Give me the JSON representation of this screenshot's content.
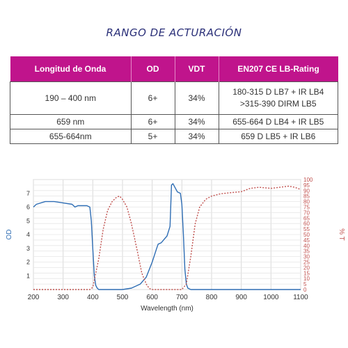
{
  "title": "RANGO DE ACTURACIÓN",
  "table": {
    "headers": [
      "Longitud de Onda",
      "OD",
      "VDT",
      "EN207 CE LB-Rating"
    ],
    "rows": [
      {
        "wavelength": "190 – 400 nm",
        "od": "6+",
        "vdt": "34%",
        "rating": [
          "180-315 D LB7 + IR LB4",
          ">315-390 DIRM LB5"
        ]
      },
      {
        "wavelength": "659 nm",
        "od": "6+",
        "vdt": "34%",
        "rating": [
          "655-664 D LB4 + IR LB5"
        ]
      },
      {
        "wavelength": "655-664nm",
        "od": "5+",
        "vdt": "34%",
        "rating": [
          "659 D LB5 + IR LB6"
        ]
      }
    ]
  },
  "chart_data": {
    "type": "line",
    "xlabel": "Wavelength (nm)",
    "ylabel_left": "OD",
    "ylabel_right": "% T",
    "xlim": [
      200,
      1100
    ],
    "ylim_left": [
      0,
      8
    ],
    "ylim_right": [
      0,
      100
    ],
    "xticks": [
      200,
      300,
      400,
      500,
      600,
      700,
      800,
      900,
      1000,
      1100
    ],
    "yticks_left": [
      1,
      2,
      3,
      4,
      5,
      6,
      7
    ],
    "yticks_right": [
      0,
      5,
      10,
      15,
      20,
      25,
      30,
      35,
      40,
      45,
      50,
      55,
      60,
      65,
      70,
      75,
      80,
      85,
      90,
      95,
      100
    ],
    "grid": true,
    "series": [
      {
        "axis": "left",
        "color": "#2e6db4",
        "dash": "solid",
        "x": [
          200,
          210,
          240,
          270,
          300,
          330,
          340,
          350,
          380,
          390,
          395,
          400,
          405,
          410,
          415,
          420,
          440,
          470,
          500,
          530,
          560,
          580,
          600,
          615,
          620,
          630,
          650,
          660,
          665,
          670,
          685,
          695,
          700,
          705,
          710,
          715,
          720,
          730,
          800,
          900,
          1000,
          1100
        ],
        "y": [
          6.0,
          6.2,
          6.4,
          6.4,
          6.3,
          6.2,
          6.0,
          6.1,
          6.1,
          6.0,
          5.0,
          3.0,
          1.0,
          0.3,
          0.1,
          0.0,
          0.0,
          0.0,
          0.0,
          0.1,
          0.4,
          0.9,
          2.0,
          3.0,
          3.3,
          3.4,
          3.9,
          4.6,
          7.6,
          7.7,
          7.1,
          7.0,
          6.2,
          4.0,
          1.5,
          0.4,
          0.1,
          0.0,
          0.0,
          0.0,
          0.0,
          0.0
        ]
      },
      {
        "axis": "right",
        "color": "#c0504d",
        "dash": "dotted",
        "x": [
          200,
          390,
          400,
          420,
          435,
          450,
          465,
          480,
          490,
          500,
          515,
          530,
          550,
          565,
          580,
          590,
          600,
          650,
          700,
          715,
          730,
          745,
          760,
          780,
          800,
          830,
          860,
          900,
          930,
          960,
          1000,
          1030,
          1060,
          1080,
          1100
        ],
        "y": [
          0,
          0,
          2,
          28,
          55,
          72,
          80,
          84,
          85,
          82,
          75,
          60,
          35,
          15,
          5,
          1,
          0,
          0,
          0,
          5,
          30,
          60,
          75,
          82,
          85,
          87,
          88,
          89,
          92,
          93,
          92,
          93,
          94,
          93,
          91
        ]
      }
    ]
  }
}
